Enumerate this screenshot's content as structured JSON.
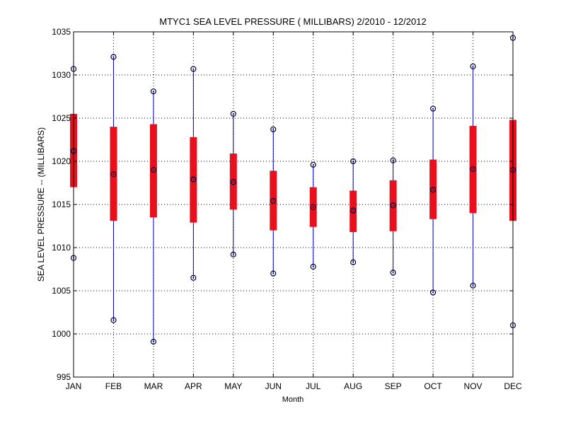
{
  "chart_data": {
    "type": "box",
    "title": "MTYC1  SEA LEVEL PRESSURE ( MILLIBARS) 2/2010 - 12/2012",
    "xlabel": "Month",
    "ylabel": "SEA LEVEL PRESSURE -- (MILLIBARS)",
    "ylim": [
      995,
      1035
    ],
    "yticks": [
      995,
      1000,
      1005,
      1010,
      1015,
      1020,
      1025,
      1030,
      1035
    ],
    "grid": true,
    "categories": [
      "JAN",
      "FEB",
      "MAR",
      "APR",
      "MAY",
      "JUN",
      "JUL",
      "AUG",
      "SEP",
      "OCT",
      "NOV",
      "DEC"
    ],
    "series": [
      {
        "name": "max",
        "values": [
          1030.7,
          1032.1,
          1028.1,
          1030.7,
          1025.5,
          1023.7,
          1019.6,
          1020.0,
          1020.1,
          1026.1,
          1031.0,
          1034.3
        ]
      },
      {
        "name": "upper",
        "values": [
          1025.5,
          1024.0,
          1024.3,
          1022.8,
          1020.9,
          1018.9,
          1017.0,
          1016.6,
          1017.8,
          1020.2,
          1024.1,
          1024.8
        ]
      },
      {
        "name": "median",
        "values": [
          1021.2,
          1018.5,
          1019.0,
          1017.9,
          1017.6,
          1015.4,
          1014.7,
          1014.3,
          1014.9,
          1016.7,
          1019.1,
          1019.0
        ]
      },
      {
        "name": "lower",
        "values": [
          1017.0,
          1013.1,
          1013.5,
          1012.9,
          1014.4,
          1012.0,
          1012.4,
          1011.8,
          1011.9,
          1013.3,
          1014.0,
          1013.1
        ]
      },
      {
        "name": "min",
        "values": [
          1008.8,
          1001.6,
          999.1,
          1006.5,
          1009.2,
          1007.0,
          1007.8,
          1008.3,
          1007.1,
          1004.8,
          1005.6,
          1001.0
        ]
      }
    ],
    "colors": {
      "box": "#e8101c",
      "whisker": "#0000bb",
      "marker": "#000040",
      "grid": "#000000",
      "axis": "#000000"
    }
  }
}
